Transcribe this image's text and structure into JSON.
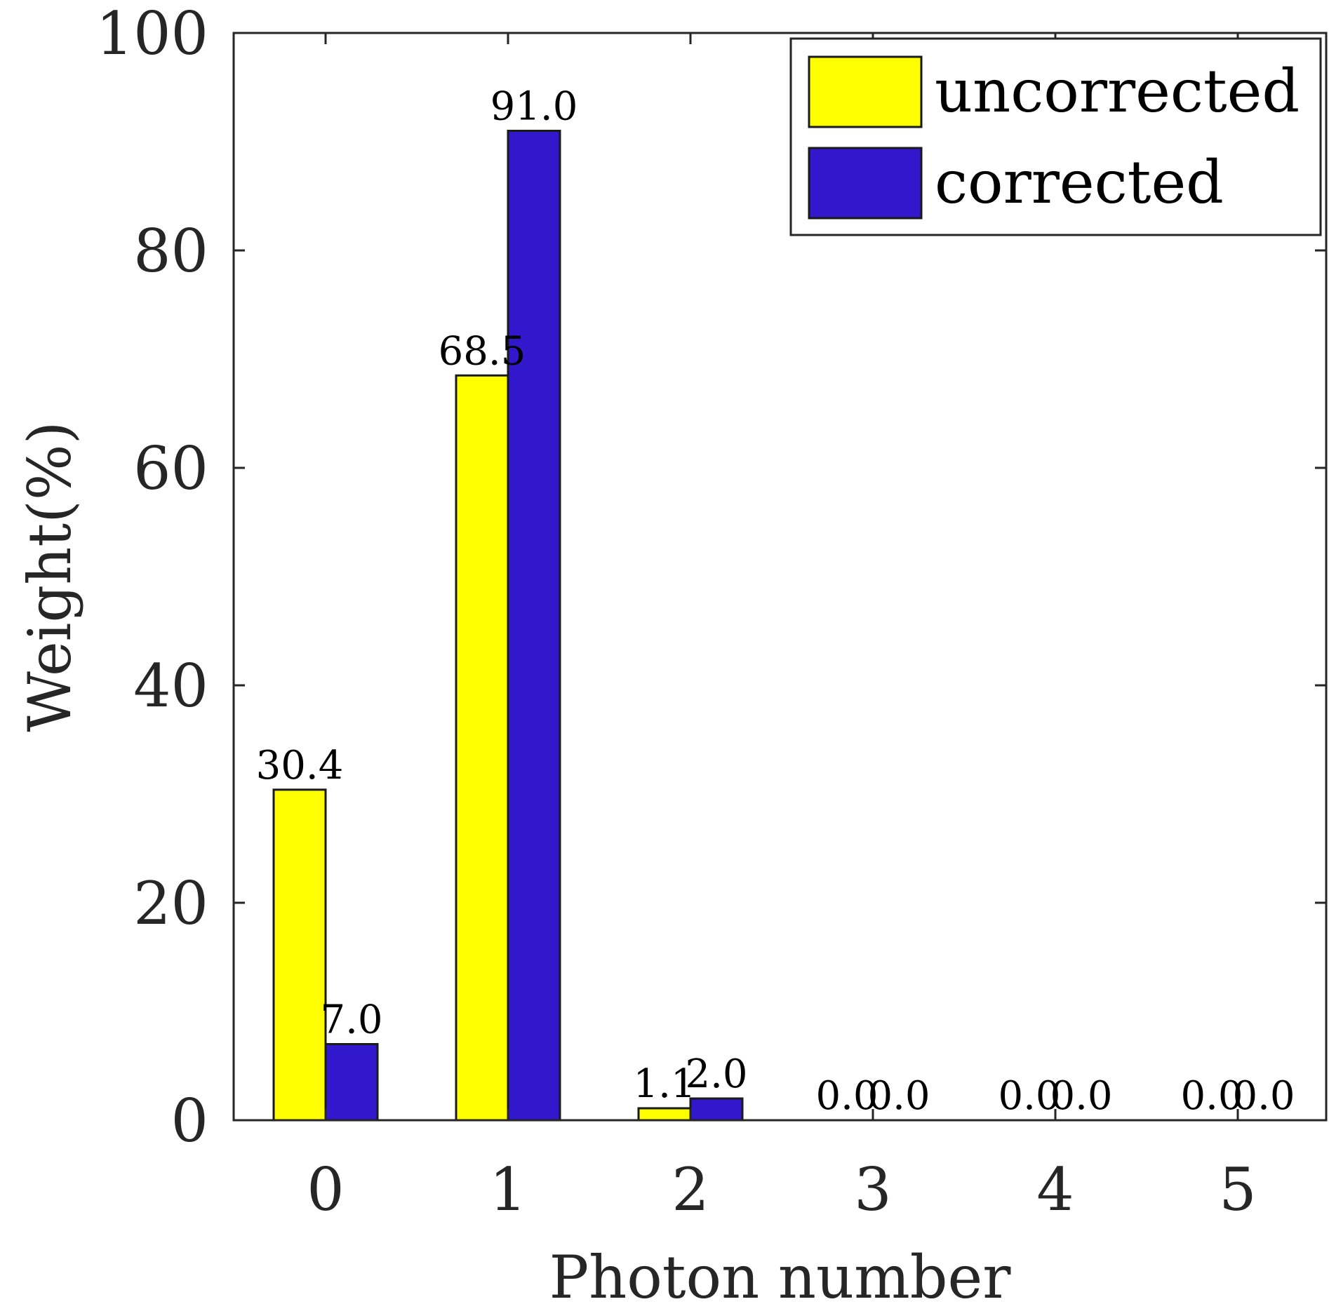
{
  "chart_data": {
    "type": "bar",
    "categories": [
      "0",
      "1",
      "2",
      "3",
      "4",
      "5"
    ],
    "series": [
      {
        "name": "uncorrected",
        "color": "#ffff00",
        "values": [
          30.4,
          68.5,
          1.1,
          0.0,
          0.0,
          0.0
        ],
        "labels": [
          "30.4",
          "68.5",
          "1.1",
          "0.0",
          "0.0",
          "0.0"
        ]
      },
      {
        "name": "corrected",
        "color": "#3218cd",
        "values": [
          7.0,
          91.0,
          2.0,
          0.0,
          0.0,
          0.0
        ],
        "labels": [
          "7.0",
          "91.0",
          "2.0",
          "0.0",
          "0.0",
          "0.0"
        ]
      }
    ],
    "title": "",
    "xlabel": "Photon number",
    "ylabel": "Weight(%)",
    "ylim": [
      0,
      100
    ],
    "yticks": [
      "0",
      "20",
      "40",
      "60",
      "80",
      "100"
    ],
    "legend": "top-right",
    "grid": false
  }
}
